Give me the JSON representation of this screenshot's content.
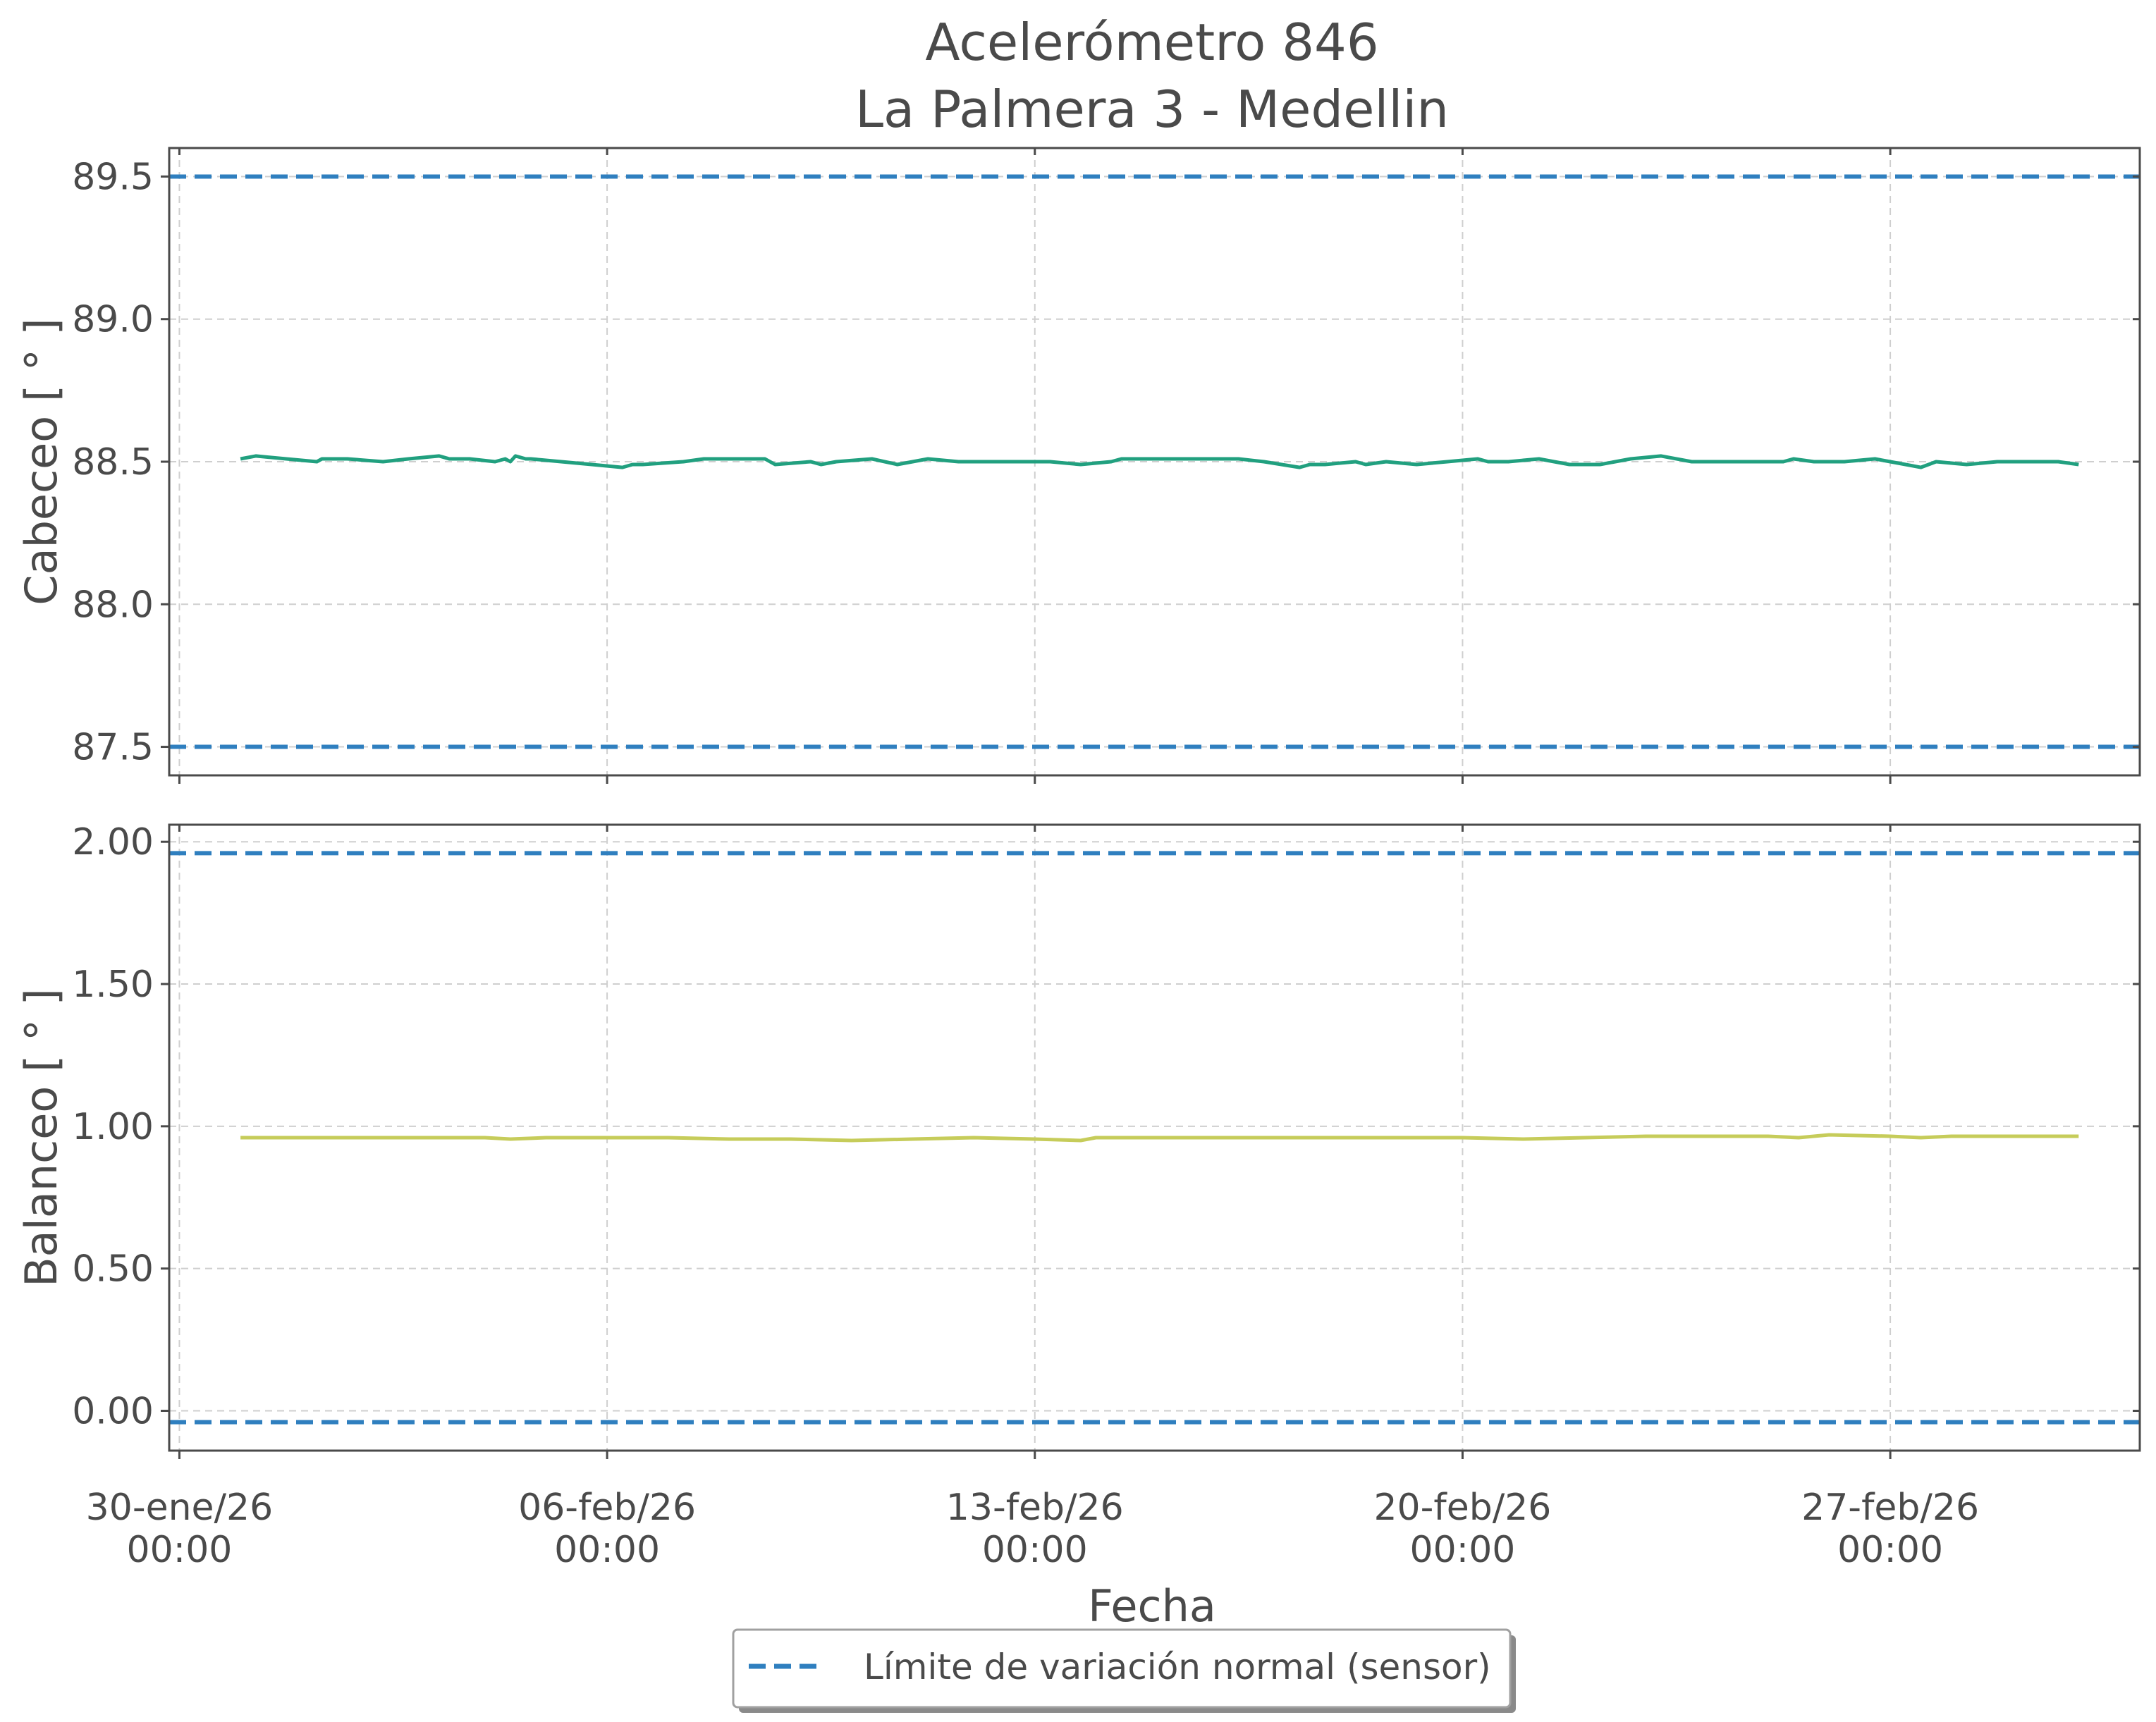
{
  "title_line1": "Acelerómetro 846",
  "title_line2": "La Palmera 3 - Medellin",
  "xlabel": "Fecha",
  "legend_label": "Límite de variación normal (sensor)",
  "colors": {
    "limit": "#2f7fbf",
    "cabeceo": "#21a07f",
    "balanceo": "#c6cc5a",
    "axes": "#4a4a4a",
    "grid": "#cfcfcf"
  },
  "chart_data": [
    {
      "type": "line",
      "ylabel": "Cabeceo [ ° ]",
      "ylim": [
        87.4,
        89.6
      ],
      "xlim": [
        "2026-01-29T20:00",
        "2026-03-03T02:00"
      ],
      "yticks": [
        87.5,
        88.0,
        88.5,
        89.0,
        89.5
      ],
      "ytick_labels": [
        "87.5",
        "88.0",
        "88.5",
        "89.0",
        "89.5"
      ],
      "xticks": [
        "2026-01-30",
        "2026-02-06",
        "2026-02-13",
        "2026-02-20",
        "2026-02-27"
      ],
      "grid": true,
      "limits": [
        87.5,
        89.5
      ],
      "series": [
        {
          "x": [
            "2026-01-31T00:00",
            "2026-01-31T06:00",
            "2026-01-31T18:00",
            "2026-02-01T06:00",
            "2026-02-01T08:00",
            "2026-02-01T18:00",
            "2026-02-02T08:00",
            "2026-02-02T18:00",
            "2026-02-03T06:00",
            "2026-02-03T10:00",
            "2026-02-03T18:00",
            "2026-02-04T04:00",
            "2026-02-04T08:00",
            "2026-02-04T10:00",
            "2026-02-04T12:00",
            "2026-02-04T16:00",
            "2026-02-04T18:00",
            "2026-02-05T06:00",
            "2026-02-05T18:00",
            "2026-02-06T06:00",
            "2026-02-06T10:00",
            "2026-02-06T14:00",
            "2026-02-07T06:00",
            "2026-02-07T14:00",
            "2026-02-07T18:00",
            "2026-02-08T14:00",
            "2026-02-08T18:00",
            "2026-02-09T08:00",
            "2026-02-09T12:00",
            "2026-02-09T18:00",
            "2026-02-10T08:00",
            "2026-02-10T18:00",
            "2026-02-11T06:00",
            "2026-02-11T18:00",
            "2026-02-12T06:00",
            "2026-02-12T18:00",
            "2026-02-13T06:00",
            "2026-02-13T18:00",
            "2026-02-14T06:00",
            "2026-02-14T10:00",
            "2026-02-14T18:00",
            "2026-02-15T08:00",
            "2026-02-15T18:00",
            "2026-02-16T08:00",
            "2026-02-16T18:00",
            "2026-02-17T08:00",
            "2026-02-17T12:00",
            "2026-02-17T18:00",
            "2026-02-18T06:00",
            "2026-02-18T10:00",
            "2026-02-18T18:00",
            "2026-02-19T06:00",
            "2026-02-19T18:00",
            "2026-02-20T06:00",
            "2026-02-20T10:00",
            "2026-02-20T18:00",
            "2026-02-21T06:00",
            "2026-02-21T12:00",
            "2026-02-21T18:00",
            "2026-02-22T06:00",
            "2026-02-22T18:00",
            "2026-02-23T06:00",
            "2026-02-23T18:00",
            "2026-02-24T06:00",
            "2026-02-24T18:00",
            "2026-02-25T06:00",
            "2026-02-25T10:00",
            "2026-02-25T18:00",
            "2026-02-26T06:00",
            "2026-02-26T18:00",
            "2026-02-27T06:00",
            "2026-02-27T12:00",
            "2026-02-27T18:00",
            "2026-02-28T06:00",
            "2026-02-28T18:00",
            "2026-03-01T06:00",
            "2026-03-01T18:00",
            "2026-03-02T02:00"
          ],
          "y": [
            88.51,
            88.52,
            88.51,
            88.5,
            88.51,
            88.51,
            88.5,
            88.51,
            88.52,
            88.51,
            88.51,
            88.5,
            88.51,
            88.5,
            88.52,
            88.51,
            88.51,
            88.5,
            88.49,
            88.48,
            88.49,
            88.49,
            88.5,
            88.51,
            88.51,
            88.51,
            88.49,
            88.5,
            88.49,
            88.5,
            88.51,
            88.49,
            88.51,
            88.5,
            88.5,
            88.5,
            88.5,
            88.49,
            88.5,
            88.51,
            88.51,
            88.51,
            88.51,
            88.51,
            88.5,
            88.48,
            88.49,
            88.49,
            88.5,
            88.49,
            88.5,
            88.49,
            88.5,
            88.51,
            88.5,
            88.5,
            88.51,
            88.5,
            88.49,
            88.49,
            88.51,
            88.52,
            88.5,
            88.5,
            88.5,
            88.5,
            88.51,
            88.5,
            88.5,
            88.51,
            88.49,
            88.48,
            88.5,
            88.49,
            88.5,
            88.5,
            88.5,
            88.49
          ]
        }
      ]
    },
    {
      "type": "line",
      "ylabel": "Balanceo [ ° ]",
      "ylim": [
        -0.14,
        2.06
      ],
      "xlim": [
        "2026-01-29T20:00",
        "2026-03-03T02:00"
      ],
      "yticks": [
        0.0,
        0.5,
        1.0,
        1.5,
        2.0
      ],
      "ytick_labels": [
        "0.00",
        "0.50",
        "1.00",
        "1.50",
        "2.00"
      ],
      "xticks": [
        "2026-01-30",
        "2026-02-06",
        "2026-02-13",
        "2026-02-20",
        "2026-02-27"
      ],
      "xtick_labels": [
        [
          "30-ene/26",
          "00:00"
        ],
        [
          "06-feb/26",
          "00:00"
        ],
        [
          "13-feb/26",
          "00:00"
        ],
        [
          "20-feb/26",
          "00:00"
        ],
        [
          "27-feb/26",
          "00:00"
        ]
      ],
      "grid": true,
      "limits": [
        -0.04,
        1.96
      ],
      "series": [
        {
          "x": [
            "2026-01-31T00:00",
            "2026-02-01T00:00",
            "2026-02-02T00:00",
            "2026-02-03T00:00",
            "2026-02-04T00:00",
            "2026-02-04T10:00",
            "2026-02-05T00:00",
            "2026-02-06T00:00",
            "2026-02-07T00:00",
            "2026-02-08T00:00",
            "2026-02-09T00:00",
            "2026-02-10T00:00",
            "2026-02-11T00:00",
            "2026-02-12T00:00",
            "2026-02-13T00:00",
            "2026-02-13T18:00",
            "2026-02-14T00:00",
            "2026-02-15T00:00",
            "2026-02-16T00:00",
            "2026-02-17T00:00",
            "2026-02-18T00:00",
            "2026-02-19T00:00",
            "2026-02-20T00:00",
            "2026-02-21T00:00",
            "2026-02-22T00:00",
            "2026-02-23T00:00",
            "2026-02-24T00:00",
            "2026-02-25T00:00",
            "2026-02-25T12:00",
            "2026-02-26T00:00",
            "2026-02-27T00:00",
            "2026-02-27T12:00",
            "2026-02-28T00:00",
            "2026-03-01T00:00",
            "2026-03-02T02:00"
          ],
          "y": [
            0.96,
            0.96,
            0.96,
            0.96,
            0.96,
            0.955,
            0.96,
            0.96,
            0.96,
            0.955,
            0.955,
            0.95,
            0.955,
            0.96,
            0.955,
            0.95,
            0.96,
            0.96,
            0.96,
            0.96,
            0.96,
            0.96,
            0.96,
            0.955,
            0.96,
            0.965,
            0.965,
            0.965,
            0.96,
            0.97,
            0.965,
            0.96,
            0.965,
            0.965,
            0.965
          ]
        }
      ]
    }
  ]
}
